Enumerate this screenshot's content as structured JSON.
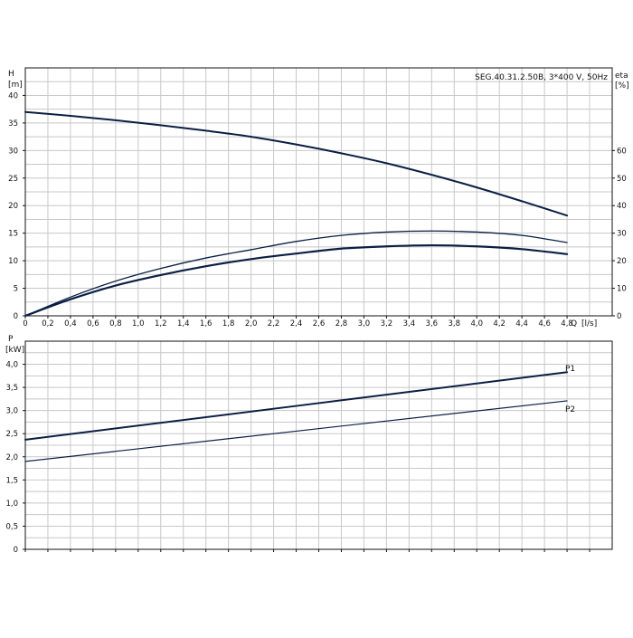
{
  "chart_data": [
    {
      "type": "line",
      "title": "SEG.40.31.2.50B, 3*400 V, 50Hz",
      "y_symbol": "H",
      "y_unit": "[m]",
      "y2_symbol": "eta",
      "y2_unit": "[%]",
      "x_symbol": "Q",
      "x_unit": "[l/s]",
      "xlim": [
        0,
        5.2
      ],
      "ylim": [
        0,
        45
      ],
      "y2lim": [
        0,
        90
      ],
      "x_ticks": [
        "0",
        "0,2",
        "0,4",
        "0,6",
        "0,8",
        "1,0",
        "1,2",
        "1,4",
        "1,6",
        "1,8",
        "2,0",
        "2,2",
        "2,4",
        "2,6",
        "2,8",
        "3,0",
        "3,2",
        "3,4",
        "3,6",
        "3,8",
        "4,0",
        "4,2",
        "4,4",
        "4,6",
        "4,8"
      ],
      "y_ticks": [
        "0",
        "5",
        "10",
        "15",
        "20",
        "25",
        "30",
        "35",
        "40"
      ],
      "y2_ticks": [
        "0",
        "10",
        "20",
        "30",
        "40",
        "50",
        "60"
      ],
      "grid": true,
      "series": [
        {
          "axis": "left",
          "x": [
            0,
            0.4,
            0.8,
            1.2,
            1.6,
            2.0,
            2.4,
            2.8,
            3.2,
            3.6,
            4.0,
            4.4,
            4.8
          ],
          "values": [
            37.0,
            36.3,
            35.5,
            34.6,
            33.6,
            32.5,
            31.1,
            29.5,
            27.7,
            25.6,
            23.3,
            20.8,
            18.2
          ]
        },
        {
          "axis": "left",
          "x": [
            0,
            0.4,
            0.8,
            1.2,
            1.6,
            2.0,
            2.4,
            2.8,
            3.2,
            3.6,
            4.0,
            4.4,
            4.8
          ],
          "values": [
            0,
            3.4,
            6.3,
            8.6,
            10.5,
            12.0,
            13.5,
            14.6,
            15.2,
            15.4,
            15.2,
            14.6,
            13.3
          ]
        },
        {
          "axis": "left",
          "x": [
            0,
            0.4,
            0.8,
            1.2,
            1.6,
            2.0,
            2.4,
            2.8,
            3.2,
            3.6,
            4.0,
            4.4,
            4.8
          ],
          "values": [
            0,
            3.0,
            5.5,
            7.4,
            9.0,
            10.3,
            11.3,
            12.2,
            12.6,
            12.8,
            12.6,
            12.1,
            11.2
          ]
        }
      ]
    },
    {
      "type": "line",
      "y_symbol": "P",
      "y_unit": "[kW]",
      "xlim": [
        0,
        5.2
      ],
      "ylim": [
        0,
        4.5
      ],
      "y_ticks": [
        "0",
        "0,5",
        "1,0",
        "1,5",
        "2,0",
        "2,5",
        "3,0",
        "3,5",
        "4,0"
      ],
      "grid": true,
      "series": [
        {
          "name": "P1",
          "x": [
            0,
            4.8
          ],
          "values": [
            2.37,
            3.83
          ]
        },
        {
          "name": "P2",
          "x": [
            0,
            4.8
          ],
          "values": [
            1.9,
            3.21
          ]
        }
      ]
    }
  ]
}
